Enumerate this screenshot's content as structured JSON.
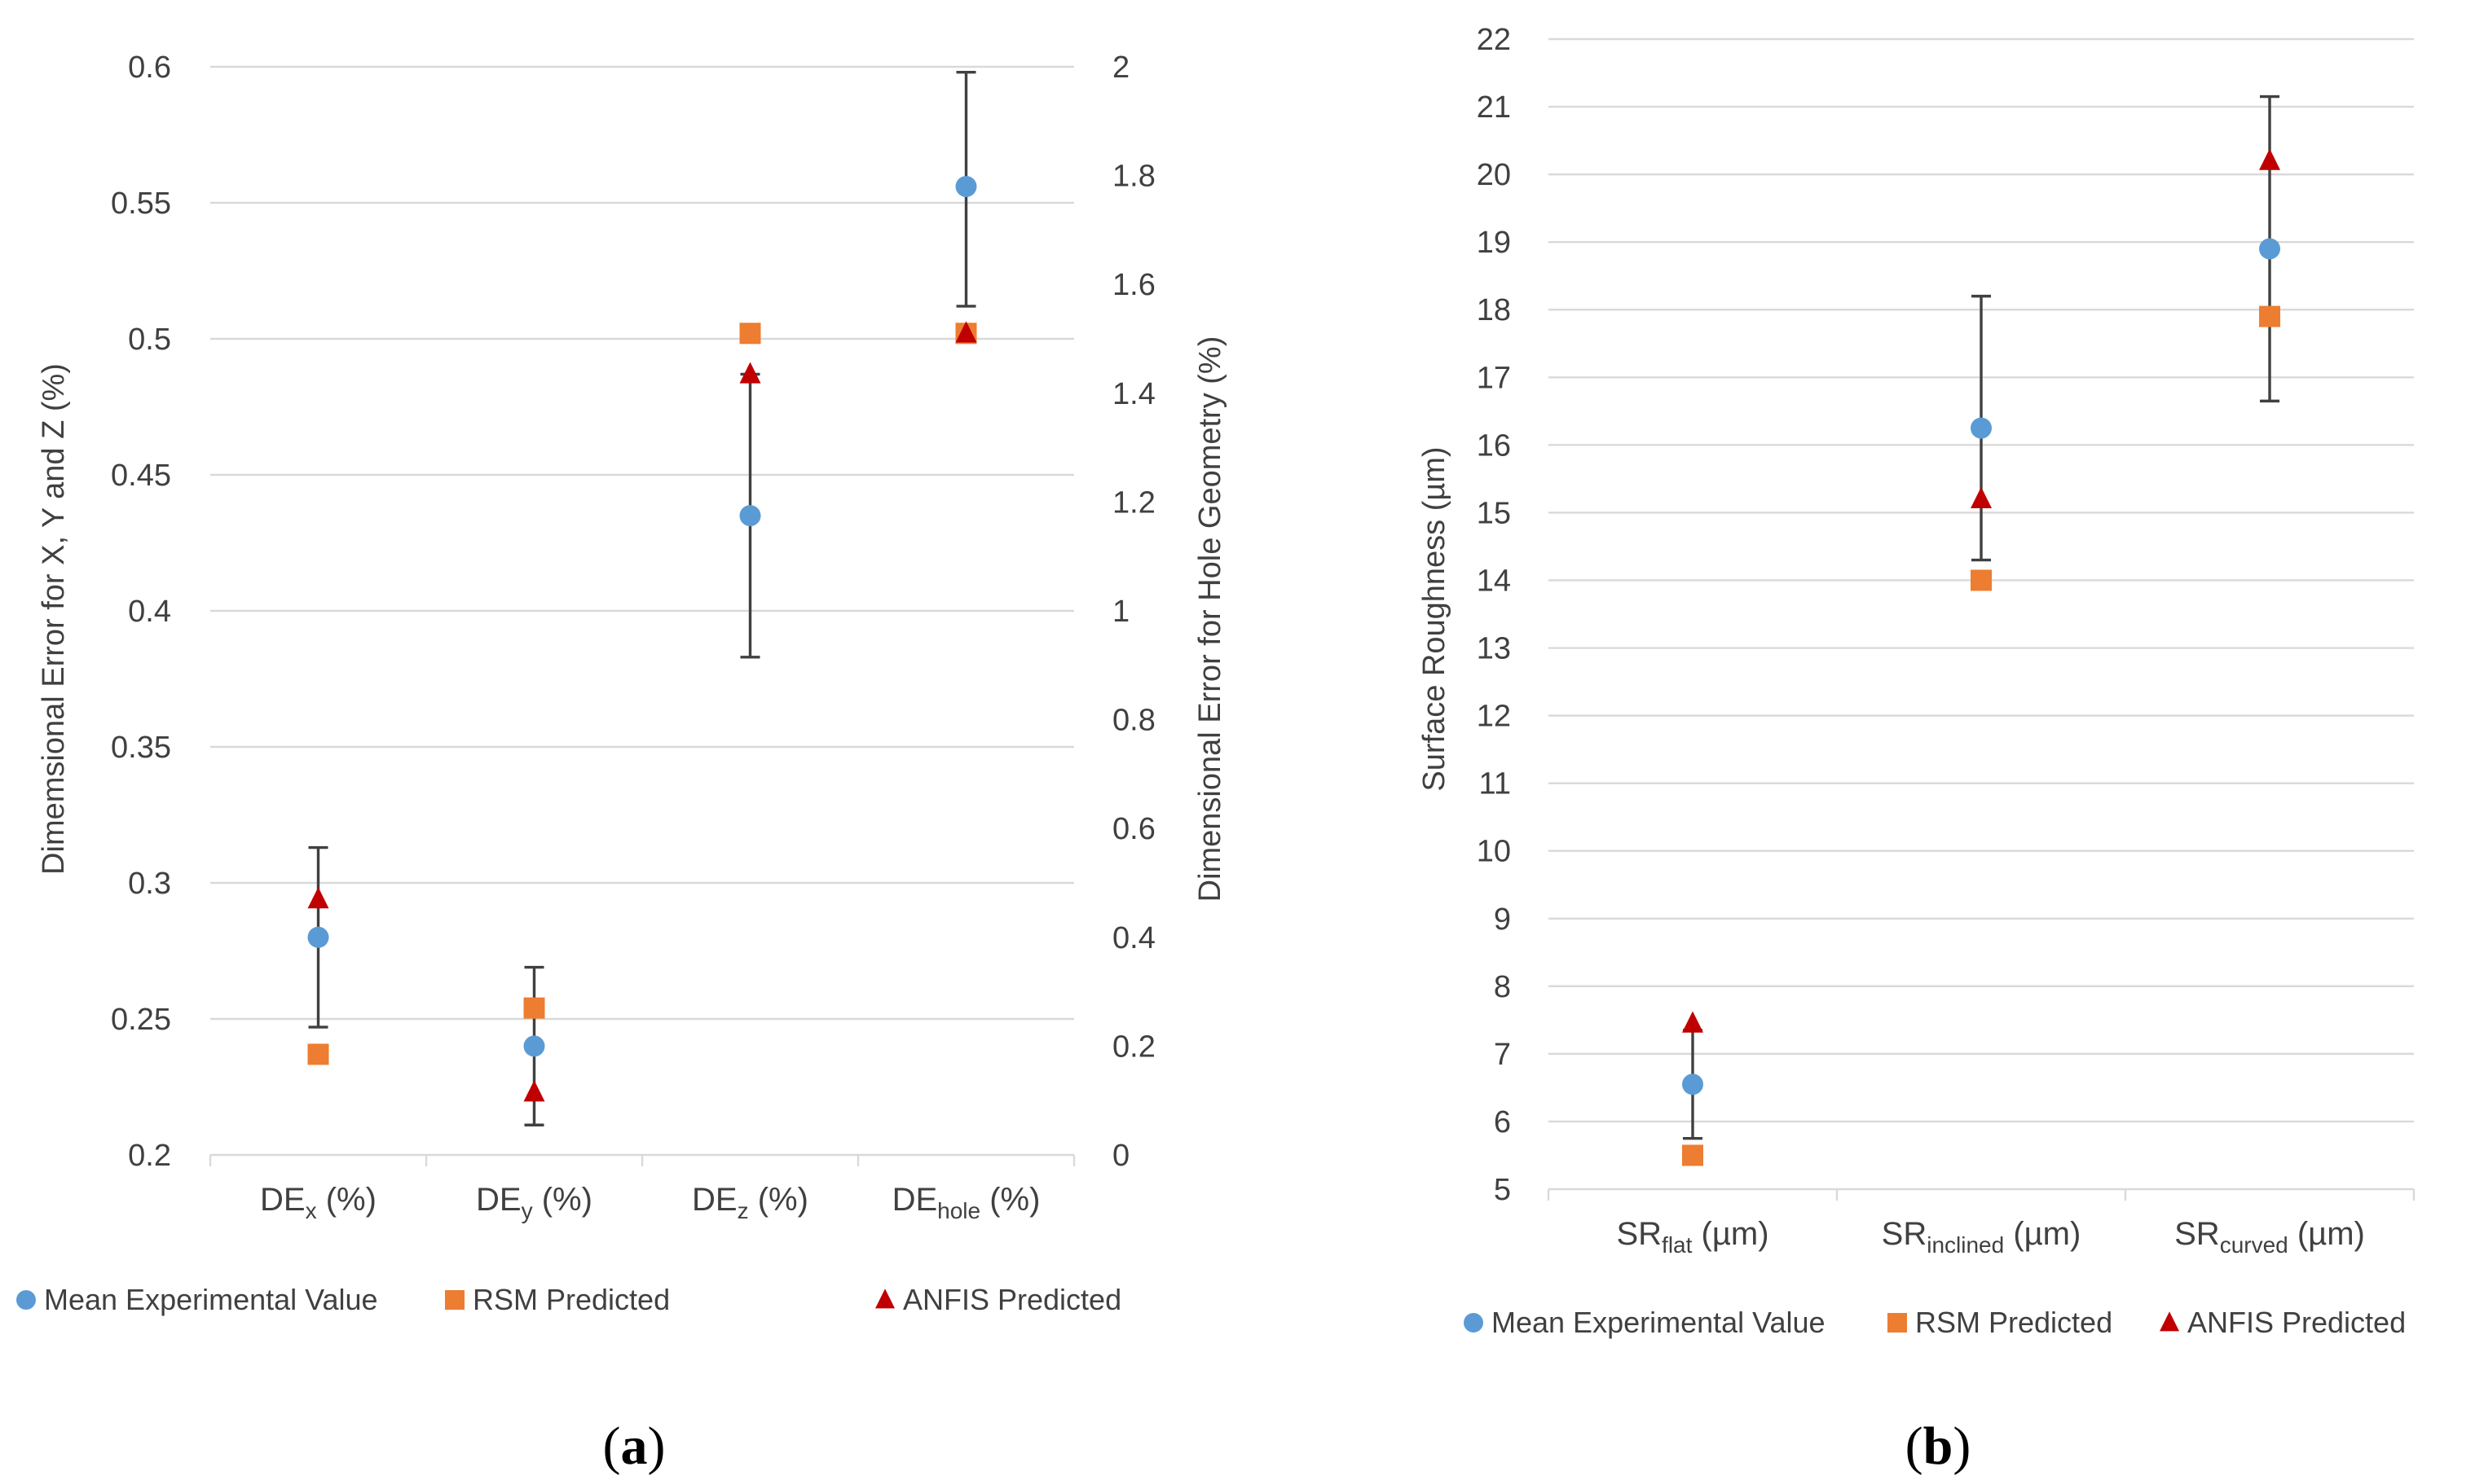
{
  "chart_data": [
    {
      "panel": "a",
      "type": "scatter",
      "categories": [
        {
          "base": "DE",
          "sub": "x",
          "suffix": " (%)"
        },
        {
          "base": "DE",
          "sub": "y",
          "suffix": " (%)"
        },
        {
          "base": "DE",
          "sub": "z",
          "suffix": " (%)"
        },
        {
          "base": "DE",
          "sub": "hole",
          "suffix": " (%)"
        }
      ],
      "ylabel": "Dimemsional Error for X, Y and Z (%)",
      "y2label": "Dimensional Error for Hole Geometry (%)",
      "ylim": [
        0.2,
        0.6
      ],
      "yticks": [
        "0.2",
        "0.25",
        "0.3",
        "0.35",
        "0.4",
        "0.45",
        "0.5",
        "0.55",
        "0.6"
      ],
      "y2lim": [
        0,
        2
      ],
      "y2ticks": [
        "0",
        "0.2",
        "0.4",
        "0.6",
        "0.8",
        "1",
        "1.2",
        "1.4",
        "1.6",
        "1.8",
        "2"
      ],
      "series": [
        {
          "name": "Mean Experimental Value",
          "marker": "circle",
          "color": "#5b9bd5",
          "values": [
            0.28,
            0.24,
            0.435,
            1.78
          ],
          "axis": [
            "y",
            "y",
            "y",
            "y2"
          ],
          "error_low": [
            0.247,
            0.211,
            0.383,
            1.56
          ],
          "error_high": [
            0.313,
            0.269,
            0.487,
            1.99
          ]
        },
        {
          "name": "RSM Predicted",
          "marker": "square",
          "color": "#ed7d31",
          "values": [
            0.237,
            0.254,
            0.502,
            1.51
          ],
          "axis": [
            "y",
            "y",
            "y",
            "y2"
          ]
        },
        {
          "name": "ANFIS Predicted",
          "marker": "triangle",
          "color": "#c00000",
          "values": [
            0.294,
            0.223,
            0.487,
            1.51
          ],
          "axis": [
            "y",
            "y",
            "y",
            "y2"
          ]
        }
      ]
    },
    {
      "panel": "b",
      "type": "scatter",
      "categories": [
        {
          "base": "SR",
          "sub": "flat",
          "suffix": " (µm)"
        },
        {
          "base": "SR",
          "sub": "inclined",
          "suffix": " (µm)"
        },
        {
          "base": "SR",
          "sub": "curved",
          "suffix": " (µm)"
        }
      ],
      "ylabel": "Surface Roughness (µm)",
      "ylim": [
        5,
        22
      ],
      "yticks": [
        "5",
        "6",
        "7",
        "8",
        "9",
        "10",
        "11",
        "12",
        "13",
        "14",
        "15",
        "16",
        "17",
        "18",
        "19",
        "20",
        "21",
        "22"
      ],
      "series": [
        {
          "name": "Mean Experimental Value",
          "marker": "circle",
          "color": "#5b9bd5",
          "values": [
            6.55,
            16.25,
            18.9
          ],
          "error_low": [
            5.75,
            14.3,
            16.65
          ],
          "error_high": [
            7.35,
            18.2,
            21.15
          ]
        },
        {
          "name": "RSM Predicted",
          "marker": "square",
          "color": "#ed7d31",
          "values": [
            5.5,
            14.0,
            17.9
          ]
        },
        {
          "name": "ANFIS Predicted",
          "marker": "triangle",
          "color": "#c00000",
          "values": [
            7.45,
            15.2,
            20.2
          ]
        }
      ]
    }
  ],
  "panel_labels": [
    {
      "open": "(",
      "letter": "a",
      "close": ")"
    },
    {
      "open": "(",
      "letter": "b",
      "close": ")"
    }
  ]
}
